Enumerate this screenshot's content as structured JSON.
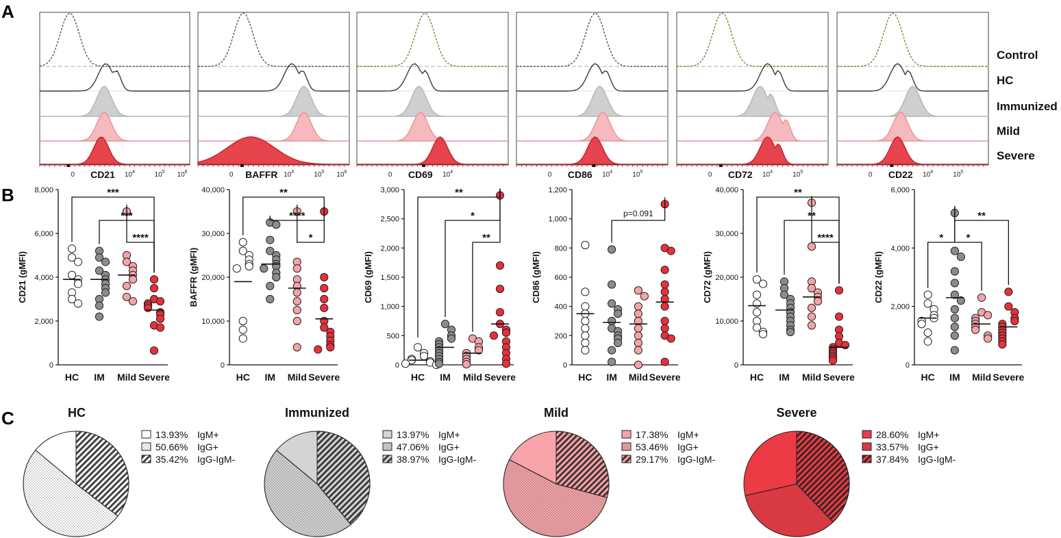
{
  "panels": {
    "a": "A",
    "b": "B",
    "c": "C"
  },
  "colors": {
    "HC": "#ffffff",
    "IM": "#8c8c8c",
    "Mild": "#f4a3a8",
    "Severe": "#e8303a",
    "control_line": "#555555",
    "control_line_alt": "#6a8a3a",
    "hc_line": "#3a3a3a",
    "immunized_fill": "#cfcfcf",
    "mild_fill": "#f6b9bd",
    "severe_fill": "#e6444d",
    "stroke": "#333333"
  },
  "histogram_rows": [
    "Control",
    "HC",
    "Immunized",
    "Mild",
    "Severe"
  ],
  "histograms": [
    {
      "marker": "CD21",
      "ticks": [
        "0",
        "10^4",
        "10^5",
        "10^6"
      ],
      "peaks": [
        0.2,
        0.44,
        0.43,
        0.43,
        0.41
      ]
    },
    {
      "marker": "BAFFR",
      "ticks": [
        "0",
        "10^4",
        "10^5",
        "10^6"
      ],
      "peaks": [
        0.3,
        0.62,
        0.7,
        0.7,
        0.35
      ]
    },
    {
      "marker": "CD69",
      "ticks": [
        "0",
        "10^4"
      ],
      "peaks": [
        0.45,
        0.38,
        0.41,
        0.42,
        0.55
      ]
    },
    {
      "marker": "CD86",
      "ticks": [
        "0",
        "10^4",
        "10^5"
      ],
      "peaks": [
        0.52,
        0.52,
        0.55,
        0.57,
        0.52
      ]
    },
    {
      "marker": "CD72",
      "ticks": [
        "0",
        "10^4",
        "10^5"
      ],
      "peaks": [
        0.3,
        0.6,
        0.55,
        0.65,
        0.6
      ]
    },
    {
      "marker": "CD22",
      "ticks": [
        "0",
        "10^4",
        "10^5"
      ],
      "peaks": [
        0.37,
        0.4,
        0.5,
        0.42,
        0.4
      ]
    }
  ],
  "chart_data": [
    {
      "type": "scatter",
      "title": "",
      "ylabel": "CD21 (gMFI)",
      "categories": [
        "HC",
        "IM",
        "Mild",
        "Severe"
      ],
      "ylim": [
        0,
        8000
      ],
      "yticks": [
        "0",
        "2,000",
        "4,000",
        "6,000",
        "8,000"
      ],
      "series": [
        {
          "name": "HC",
          "values": [
            5300,
            4900,
            4700,
            4100,
            3900,
            3700,
            3300,
            3000,
            2800
          ],
          "median": 3900
        },
        {
          "name": "IM",
          "values": [
            5200,
            4900,
            4700,
            4300,
            4100,
            3900,
            3700,
            3500,
            3300,
            3000,
            2700,
            2200
          ],
          "median": 3900
        },
        {
          "name": "Mild",
          "values": [
            7000,
            5000,
            4700,
            4500,
            4300,
            4100,
            3900,
            3600,
            3100,
            2900
          ],
          "median": 4100
        },
        {
          "name": "Severe",
          "values": [
            3900,
            3500,
            3000,
            2900,
            2800,
            2700,
            2600,
            2400,
            2300,
            2100,
            1800,
            1700,
            650
          ],
          "median": 2500
        }
      ],
      "brackets": [
        [
          "HC",
          "Severe",
          "***"
        ],
        [
          "IM",
          "Severe",
          "***"
        ],
        [
          "Mild",
          "Severe",
          "****"
        ]
      ]
    },
    {
      "type": "scatter",
      "title": "",
      "ylabel": "BAFFR (gMFI)",
      "categories": [
        "HC",
        "IM",
        "Mild",
        "Severe"
      ],
      "ylim": [
        0,
        40000
      ],
      "yticks": [
        "0",
        "10,000",
        "20,000",
        "30,000",
        "40,000"
      ],
      "series": [
        {
          "name": "HC",
          "values": [
            28000,
            26000,
            25000,
            24000,
            23000,
            22500,
            22000,
            10000,
            8000,
            6000
          ],
          "median": 19000
        },
        {
          "name": "IM",
          "values": [
            32500,
            32000,
            28500,
            26000,
            25000,
            24000,
            23000,
            22500,
            22000,
            21000,
            20000,
            18000,
            15000
          ],
          "median": 23000
        },
        {
          "name": "Mild",
          "values": [
            35000,
            23500,
            22000,
            19500,
            18000,
            16500,
            14500,
            12500,
            10000,
            4000
          ],
          "median": 17500
        },
        {
          "name": "Severe",
          "values": [
            35000,
            20000,
            17500,
            15000,
            13000,
            10000,
            8500,
            7500,
            6500,
            5500,
            4500,
            4000,
            3500
          ],
          "median": 10500
        }
      ],
      "brackets": [
        [
          "HC",
          "Severe",
          "**"
        ],
        [
          "IM",
          "Severe",
          "****"
        ],
        [
          "Mild",
          "Severe",
          "*"
        ]
      ]
    },
    {
      "type": "scatter",
      "title": "",
      "ylabel": "CD69 (gMFI)",
      "categories": [
        "HC",
        "IM",
        "Mild",
        "Severe"
      ],
      "ylim": [
        0,
        3000
      ],
      "yticks": [
        "0",
        "500",
        "1,000",
        "1,500",
        "2,000",
        "2,500",
        "3,000"
      ],
      "series": [
        {
          "name": "HC",
          "values": [
            300,
            200,
            150,
            100,
            80,
            60,
            40,
            20,
            0
          ],
          "median": 80
        },
        {
          "name": "IM",
          "values": [
            700,
            600,
            500,
            450,
            400,
            350,
            300,
            250,
            200,
            150,
            100,
            50,
            20
          ],
          "median": 300
        },
        {
          "name": "Mild",
          "values": [
            450,
            400,
            300,
            250,
            200,
            150,
            100,
            50,
            10
          ],
          "median": 200
        },
        {
          "name": "Severe",
          "values": [
            2900,
            1700,
            1300,
            900,
            700,
            600,
            550,
            500,
            400,
            300,
            200,
            100,
            20
          ],
          "median": 700
        }
      ],
      "brackets": [
        [
          "HC",
          "Severe",
          "**"
        ],
        [
          "IM",
          "Severe",
          "*"
        ],
        [
          "Mild",
          "Severe",
          "**"
        ]
      ]
    },
    {
      "type": "scatter",
      "title": "",
      "ylabel": "CD86 (gMFI)",
      "categories": [
        "HC",
        "IM",
        "Mild",
        "Severe"
      ],
      "ylim": [
        0,
        1200
      ],
      "yticks": [
        "0",
        "200",
        "400",
        "600",
        "800",
        "1,000",
        "1,200"
      ],
      "series": [
        {
          "name": "HC",
          "values": [
            820,
            500,
            400,
            350,
            300,
            250,
            200,
            150,
            100
          ],
          "median": 350
        },
        {
          "name": "IM",
          "values": [
            790,
            550,
            420,
            380,
            350,
            300,
            250,
            230,
            200,
            180,
            150,
            100,
            20
          ],
          "median": 290
        },
        {
          "name": "Mild",
          "values": [
            510,
            470,
            400,
            350,
            300,
            250,
            200,
            150,
            100,
            0
          ],
          "median": 280
        },
        {
          "name": "Severe",
          "values": [
            1100,
            800,
            780,
            650,
            550,
            500,
            450,
            400,
            300,
            250,
            200,
            180,
            20
          ],
          "median": 430
        }
      ],
      "brackets": [
        [
          "IM",
          "Severe",
          "p=0.091"
        ]
      ]
    },
    {
      "type": "scatter",
      "title": "",
      "ylabel": "CD72 (gMFI)",
      "categories": [
        "HC",
        "IM",
        "Mild",
        "Severe"
      ],
      "ylim": [
        0,
        40000
      ],
      "yticks": [
        "0",
        "10,000",
        "20,000",
        "30,000",
        "40,000"
      ],
      "series": [
        {
          "name": "HC",
          "values": [
            19500,
            18500,
            16000,
            14000,
            12000,
            10000,
            8500,
            7500,
            7000
          ],
          "median": 13500
        },
        {
          "name": "IM",
          "values": [
            19000,
            17500,
            16000,
            15000,
            14000,
            13000,
            12000,
            11000,
            10000,
            9000,
            8000,
            7500
          ],
          "median": 12500
        },
        {
          "name": "Mild",
          "values": [
            37000,
            27000,
            19000,
            17500,
            16500,
            15500,
            14500,
            13000,
            11000,
            9000
          ],
          "median": 15500
        },
        {
          "name": "Severe",
          "values": [
            17000,
            11000,
            8000,
            6500,
            5000,
            4500,
            4000,
            3500,
            3000,
            2500,
            2000,
            1500,
            1000
          ],
          "median": 4000
        }
      ],
      "brackets": [
        [
          "HC",
          "Severe",
          "**"
        ],
        [
          "IM",
          "Severe",
          "**"
        ],
        [
          "Mild",
          "Severe",
          "****"
        ]
      ]
    },
    {
      "type": "scatter",
      "title": "",
      "ylabel": "CD22 (gMFI)",
      "categories": [
        "HC",
        "IM",
        "Mild",
        "Severe"
      ],
      "ylim": [
        0,
        6000
      ],
      "yticks": [
        "0",
        "2,000",
        "4,000",
        "6,000"
      ],
      "series": [
        {
          "name": "HC",
          "values": [
            2400,
            2100,
            1900,
            1700,
            1600,
            1500,
            1400,
            1100,
            800
          ],
          "median": 1600
        },
        {
          "name": "IM",
          "values": [
            5200,
            3900,
            3700,
            3200,
            2800,
            2400,
            2200,
            1900,
            1600,
            1300,
            1000,
            500
          ],
          "median": 2300
        },
        {
          "name": "Mild",
          "values": [
            2300,
            1800,
            1700,
            1600,
            1500,
            1400,
            1300,
            1200,
            1000,
            900
          ],
          "median": 1400
        },
        {
          "name": "Severe",
          "values": [
            2500,
            2000,
            1800,
            1600,
            1500,
            1400,
            1300,
            1200,
            1100,
            1000,
            900,
            800,
            700
          ],
          "median": 1300
        }
      ],
      "brackets": [
        [
          "HC",
          "IM",
          "*"
        ],
        [
          "IM",
          "Mild",
          "*"
        ],
        [
          "IM",
          "Severe",
          "**"
        ]
      ]
    },
    {
      "type": "pie",
      "title": "HC",
      "fill": "#ffffff",
      "slices": [
        {
          "label": "IgM+",
          "value": 13.93,
          "pattern": "solid",
          "text": "13.93%"
        },
        {
          "label": "IgG+",
          "value": 50.66,
          "pattern": "dots",
          "text": "50.66%"
        },
        {
          "label": "IgG-IgM-",
          "value": 35.42,
          "pattern": "hatch",
          "text": "35.42%"
        }
      ]
    },
    {
      "type": "pie",
      "title": "Immunized",
      "fill": "#d4d4d4",
      "slices": [
        {
          "label": "IgM+",
          "value": 13.97,
          "pattern": "solid",
          "text": "13.97%"
        },
        {
          "label": "IgG+",
          "value": 47.06,
          "pattern": "dots",
          "text": "47.06%"
        },
        {
          "label": "IgG-IgM-",
          "value": 38.97,
          "pattern": "hatch",
          "text": "38.97%"
        }
      ]
    },
    {
      "type": "pie",
      "title": "Mild",
      "fill": "#f6a4a9",
      "slices": [
        {
          "label": "IgM+",
          "value": 17.38,
          "pattern": "solid",
          "text": "17.38%"
        },
        {
          "label": "IgG+",
          "value": 53.46,
          "pattern": "dots",
          "text": "53.46%"
        },
        {
          "label": "IgG-IgM-",
          "value": 29.17,
          "pattern": "hatch",
          "text": "29.17%"
        }
      ]
    },
    {
      "type": "pie",
      "title": "Severe",
      "fill": "#ec3b44",
      "slices": [
        {
          "label": "IgM+",
          "value": 28.6,
          "pattern": "solid",
          "text": "28.60%"
        },
        {
          "label": "IgG+",
          "value": 33.57,
          "pattern": "dots",
          "text": "33.57%"
        },
        {
          "label": "IgG-IgM-",
          "value": 37.84,
          "pattern": "hatch",
          "text": "37.84%"
        }
      ]
    }
  ]
}
